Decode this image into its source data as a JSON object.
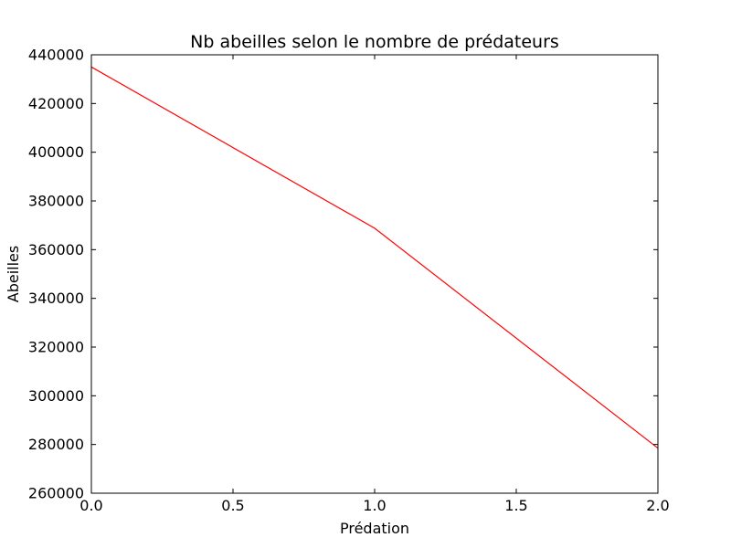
{
  "chart_data": {
    "type": "line",
    "title": "Nb abeilles selon le nombre de prédateurs",
    "xlabel": "Prédation",
    "ylabel": "Abeilles",
    "xlim": [
      0.0,
      2.0
    ],
    "ylim": [
      260000,
      440000
    ],
    "xticks": [
      0.0,
      0.5,
      1.0,
      1.5,
      2.0
    ],
    "xtick_labels": [
      "0.0",
      "0.5",
      "1.0",
      "1.5",
      "2.0"
    ],
    "yticks": [
      260000,
      280000,
      300000,
      320000,
      340000,
      360000,
      380000,
      400000,
      420000,
      440000
    ],
    "ytick_labels": [
      "260000",
      "280000",
      "300000",
      "320000",
      "340000",
      "360000",
      "380000",
      "400000",
      "420000",
      "440000"
    ],
    "grid": false,
    "series": [
      {
        "color": "#ff0000",
        "x": [
          0,
          1,
          2
        ],
        "y": [
          435000,
          368800,
          278500
        ]
      }
    ]
  }
}
